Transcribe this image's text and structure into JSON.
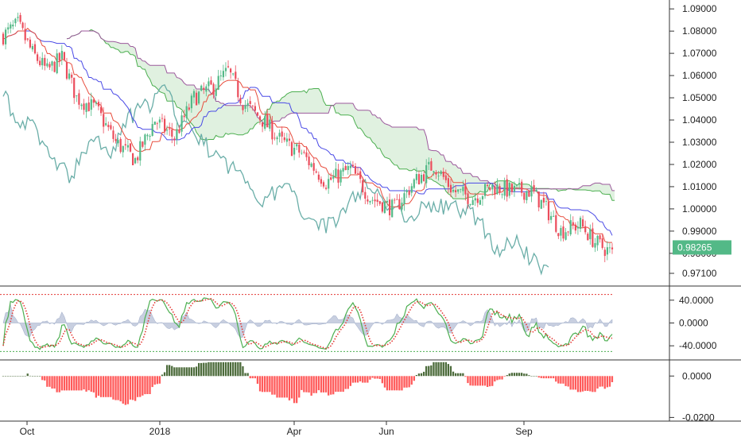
{
  "chart_data": [
    {
      "type": "line",
      "title": "",
      "panel": "price",
      "ylim": [
        0.966,
        1.094
      ],
      "y_ticks": [
        "1.09000",
        "1.08000",
        "1.07000",
        "1.06000",
        "1.05000",
        "1.04000",
        "1.03000",
        "1.02000",
        "1.01000",
        "1.00000",
        "0.99000",
        "0.98000",
        "0.97100"
      ],
      "last_price": "0.98265",
      "overlays": [
        "Candlesticks (OHLC)",
        "Ichimoku Cloud (Senkou Span A/B)",
        "Kijun-sen",
        "Tenkan-sen",
        "Chikou Span"
      ],
      "colors": {
        "up": "#53b987",
        "down": "#eb4d5c",
        "kijun": "#4a4ae6",
        "tenkan": "#e74c3c",
        "chikou": "#6aaea8",
        "cloud_fill": "#a5d6a7",
        "span_a": "#4caf50",
        "span_b": "#9c5a9c"
      }
    },
    {
      "type": "line",
      "panel": "stochastic",
      "ylim": [
        -62,
        62
      ],
      "y_ticks": [
        "40.0000",
        "0.0000",
        "-40.0000"
      ],
      "upper_band": 50,
      "lower_band": -50,
      "colors": {
        "k": "#4caf50",
        "d": "#e53935",
        "area": "#9aa8c6",
        "upper": "#e53935",
        "lower": "#4caf50"
      }
    },
    {
      "type": "bar",
      "panel": "histogram",
      "ylim": [
        -0.021,
        0.007
      ],
      "y_ticks": [
        "0.0000",
        "-0.0200"
      ],
      "colors": {
        "positive": "#4c6b3b",
        "negative": "#ff5a5a"
      }
    }
  ],
  "x_axis": {
    "labels": [
      "Oct",
      "2018",
      "Apr",
      "Jun",
      "Sep"
    ]
  }
}
